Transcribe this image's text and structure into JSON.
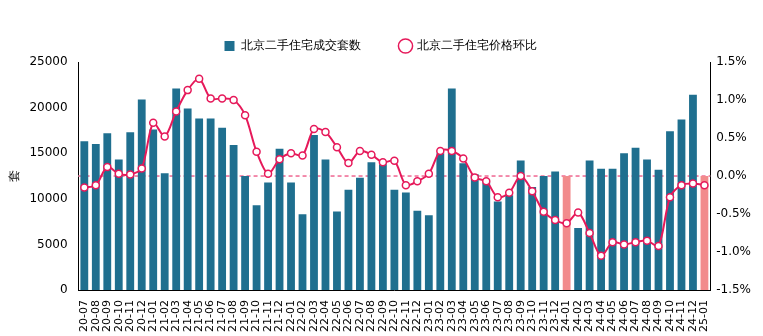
{
  "chart_data": {
    "type": "bar",
    "categories": [
      "20-07",
      "20-08",
      "20-09",
      "20-10",
      "20-11",
      "20-12",
      "21-01",
      "21-02",
      "21-03",
      "21-04",
      "21-05",
      "21-06",
      "21-07",
      "21-08",
      "21-09",
      "21-10",
      "21-11",
      "21-12",
      "22-01",
      "22-02",
      "22-03",
      "22-04",
      "22-05",
      "22-06",
      "22-07",
      "22-08",
      "22-09",
      "22-10",
      "22-11",
      "22-12",
      "23-01",
      "23-02",
      "23-03",
      "23-04",
      "23-05",
      "23-06",
      "23-07",
      "23-08",
      "23-09",
      "23-10",
      "23-11",
      "23-12",
      "24-01",
      "24-02",
      "24-03",
      "24-04",
      "24-05",
      "24-06",
      "24-07",
      "24-08",
      "24-09",
      "24-10",
      "24-11",
      "24-12",
      "25-01"
    ],
    "series": [
      {
        "name": "北京二手住宅成交套数",
        "type": "bar",
        "color": "#1f6f8f",
        "colors": [
          "#1f6f8f",
          "#1f6f8f",
          "#1f6f8f",
          "#1f6f8f",
          "#1f6f8f",
          "#1f6f8f",
          "#1f6f8f",
          "#1f6f8f",
          "#1f6f8f",
          "#1f6f8f",
          "#1f6f8f",
          "#1f6f8f",
          "#1f6f8f",
          "#1f6f8f",
          "#1f6f8f",
          "#1f6f8f",
          "#1f6f8f",
          "#1f6f8f",
          "#1f6f8f",
          "#1f6f8f",
          "#1f6f8f",
          "#1f6f8f",
          "#1f6f8f",
          "#1f6f8f",
          "#1f6f8f",
          "#1f6f8f",
          "#1f6f8f",
          "#1f6f8f",
          "#1f6f8f",
          "#1f6f8f",
          "#1f6f8f",
          "#1f6f8f",
          "#1f6f8f",
          "#1f6f8f",
          "#1f6f8f",
          "#1f6f8f",
          "#1f6f8f",
          "#1f6f8f",
          "#1f6f8f",
          "#1f6f8f",
          "#1f6f8f",
          "#1f6f8f",
          "#f28b8c",
          "#1f6f8f",
          "#1f6f8f",
          "#1f6f8f",
          "#1f6f8f",
          "#1f6f8f",
          "#1f6f8f",
          "#1f6f8f",
          "#1f6f8f",
          "#1f6f8f",
          "#1f6f8f",
          "#1f6f8f",
          "#f28b8c"
        ],
        "values": [
          16300,
          16000,
          17200,
          14300,
          17300,
          20900,
          17600,
          12800,
          22100,
          19900,
          18800,
          18800,
          17800,
          15900,
          12500,
          9300,
          11800,
          15500,
          11800,
          8300,
          17000,
          14300,
          8600,
          11000,
          12300,
          14000,
          13800,
          11000,
          10700,
          8700,
          8200,
          15000,
          22100,
          13900,
          12700,
          11800,
          9700,
          10400,
          14200,
          11300,
          12500,
          13000,
          12500,
          6800,
          14200,
          13300,
          13300,
          15000,
          15600,
          14300,
          13200,
          17400,
          18700,
          21400,
          12500
        ]
      },
      {
        "name": "北京二手住宅价格环比",
        "type": "line",
        "color": "#e6195a",
        "marker": "circle",
        "axis": "y2",
        "values": [
          -0.15,
          -0.12,
          0.12,
          0.03,
          0.02,
          0.1,
          0.7,
          0.52,
          0.85,
          1.13,
          1.28,
          1.02,
          1.02,
          1.0,
          0.8,
          0.32,
          0.03,
          0.22,
          0.3,
          0.27,
          0.62,
          0.58,
          0.38,
          0.17,
          0.33,
          0.28,
          0.18,
          0.2,
          -0.12,
          -0.07,
          0.03,
          0.33,
          0.33,
          0.23,
          -0.02,
          -0.07,
          -0.28,
          -0.22,
          0.0,
          -0.2,
          -0.47,
          -0.58,
          -0.62,
          -0.48,
          -0.75,
          -1.05,
          -0.87,
          -0.9,
          -0.87,
          -0.85,
          -0.92,
          -0.28,
          -0.12,
          -0.1,
          -0.12
        ]
      }
    ],
    "y_label": "套",
    "ylim": [
      0,
      25000
    ],
    "yticks": [
      0,
      5000,
      10000,
      15000,
      20000,
      25000
    ],
    "y2lim": [
      -1.5,
      1.5
    ],
    "y2ticks": [
      {
        "value": -1.5,
        "label": "-1.5%"
      },
      {
        "value": -1.0,
        "label": "-1.0%"
      },
      {
        "value": -0.5,
        "label": "-0.5%"
      },
      {
        "value": 0.0,
        "label": "0.0%"
      },
      {
        "value": 0.5,
        "label": "0.5%"
      },
      {
        "value": 1.0,
        "label": "1.0%"
      },
      {
        "value": 1.5,
        "label": "1.5%"
      }
    ],
    "grid": false,
    "legend": "top"
  }
}
